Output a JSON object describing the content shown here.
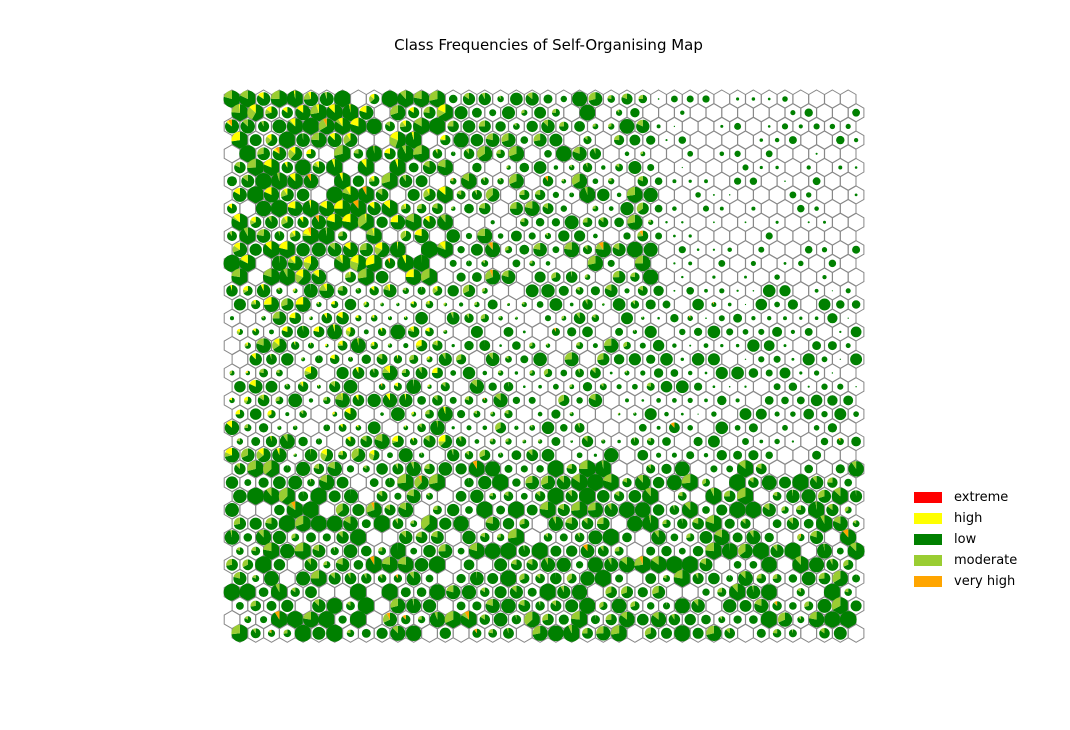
{
  "chart_data": {
    "type": "hexbin-pie-grid",
    "title": "Class Frequencies of Self-Organising Map",
    "xlabel": "",
    "ylabel": "",
    "grid": false,
    "legend_placement": "right",
    "grid_columns": 40,
    "grid_rows": 40,
    "hex_outline_color": "#888888",
    "classes": [
      {
        "name": "extreme",
        "color": "#ff0000"
      },
      {
        "name": "high",
        "color": "#ffff00"
      },
      {
        "name": "low",
        "color": "#008000"
      },
      {
        "name": "moderate",
        "color": "#9acd32"
      },
      {
        "name": "very high",
        "color": "#ffa500"
      }
    ],
    "class_distribution_regions": [
      {
        "region": "left-top",
        "dominant": "low",
        "secondary": [
          "moderate",
          "high"
        ],
        "fill_level": 0.9
      },
      {
        "region": "center-top",
        "dominant": "low",
        "secondary": [
          "moderate"
        ],
        "fill_level": 0.6
      },
      {
        "region": "right-top",
        "dominant": "low",
        "secondary": [],
        "fill_level": 0.15
      },
      {
        "region": "left-middle",
        "dominant": "low",
        "secondary": [
          "moderate",
          "high"
        ],
        "fill_level": 0.55
      },
      {
        "region": "center-middle",
        "dominant": "low",
        "secondary": [
          "moderate"
        ],
        "fill_level": 0.5
      },
      {
        "region": "right-middle",
        "dominant": "low",
        "secondary": [],
        "fill_level": 0.4
      },
      {
        "region": "bottom",
        "dominant": "low",
        "secondary": [
          "moderate"
        ],
        "fill_level": 0.75
      }
    ]
  }
}
